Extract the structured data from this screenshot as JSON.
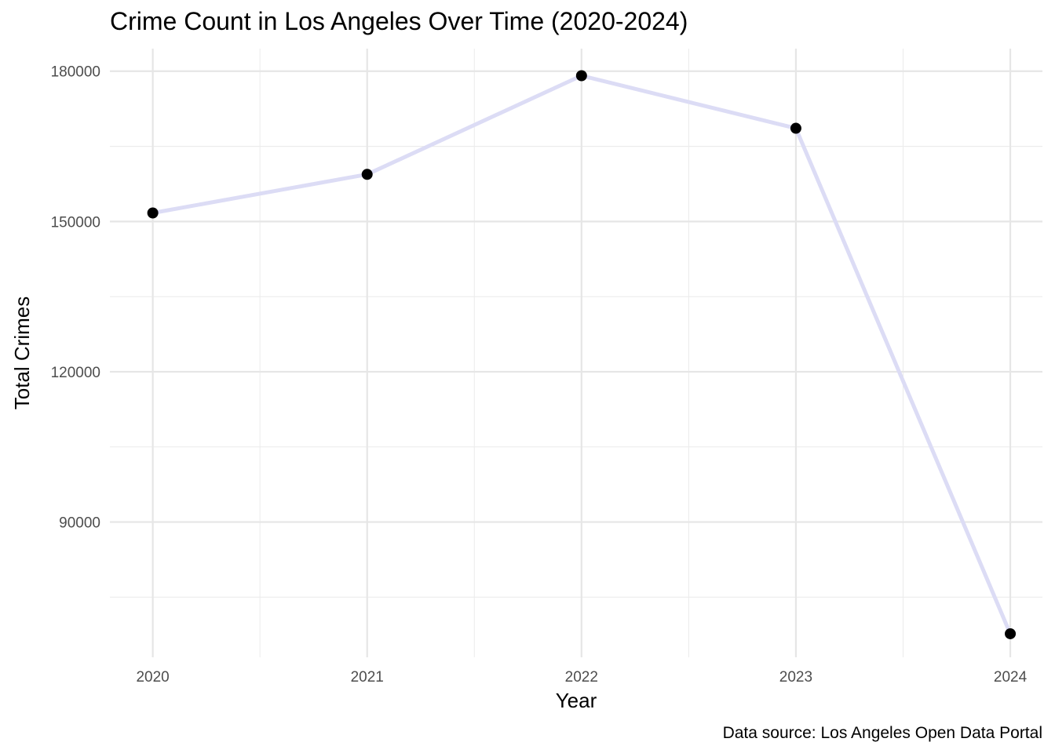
{
  "chart_data": {
    "type": "line",
    "title": "Crime Count in Los Angeles Over Time (2020-2024)",
    "xlabel": "Year",
    "ylabel": "Total Crimes",
    "caption": "Data source: Los Angeles Open Data Portal",
    "x": [
      2020,
      2021,
      2022,
      2023,
      2024
    ],
    "series": [
      {
        "values": [
          151700,
          159400,
          179100,
          168600,
          67700
        ]
      }
    ],
    "x_ticks": [
      "2020",
      "2021",
      "2022",
      "2023",
      "2024"
    ],
    "y_ticks": [
      90000,
      120000,
      150000,
      180000
    ],
    "y_tick_labels": [
      "90000",
      "120000",
      "150000",
      "180000"
    ],
    "xlim": [
      2019.8,
      2024.15
    ],
    "ylim": [
      63000,
      184500
    ],
    "grid": true,
    "legend": "none",
    "colors": {
      "line": "#dcdcf5",
      "point": "#000000",
      "grid": "#e6e6e6",
      "tick_text": "#4d4d4d"
    }
  }
}
